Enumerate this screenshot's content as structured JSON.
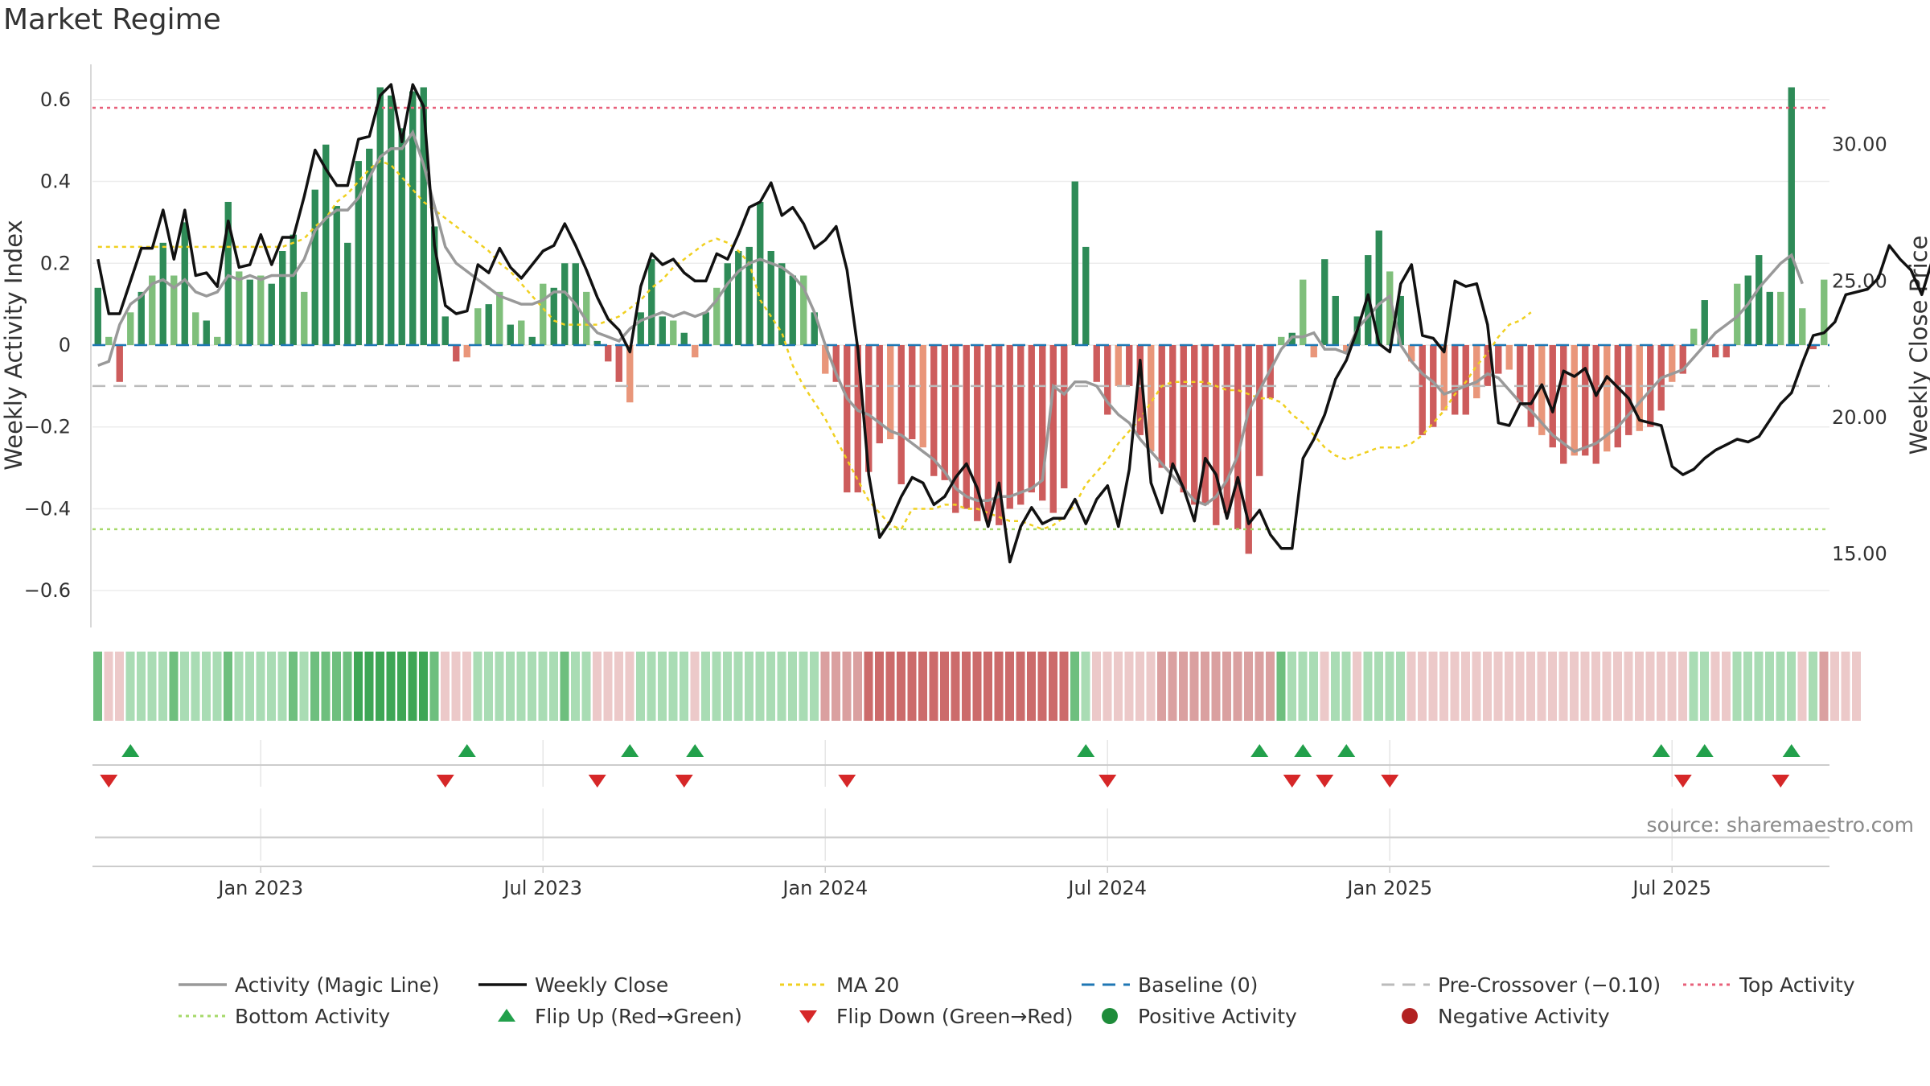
{
  "title": "Market Regime",
  "source": "source: sharemaestro.com",
  "colors": {
    "pos_dark": "#2e8b57",
    "pos_light": "#7fbf7b",
    "neg_dark": "#cd5c5c",
    "neg_light": "#e9967a",
    "close": "#111111",
    "magic": "#999999",
    "ma20": "#f0d020",
    "baseline": "#1f77b4",
    "precross": "#bbbbbb",
    "top": "#e8607a",
    "bottom": "#a6d96a",
    "flip_up": "#22a04b",
    "flip_down": "#d62728",
    "pos_dot": "#1e8c3a",
    "neg_dot": "#b22222"
  },
  "chart_data": {
    "type": "bar",
    "title": "Market Regime",
    "ylabel_left": "Weekly Activity Index",
    "ylabel_right": "Weekly Close Price",
    "ylim_left": [
      -0.69,
      0.69
    ],
    "ylim_right": [
      12.3,
      33.0
    ],
    "yticks_left": [
      {
        "v": 0.6,
        "label": "0.6"
      },
      {
        "v": 0.4,
        "label": "0.4"
      },
      {
        "v": 0.2,
        "label": "0.2"
      },
      {
        "v": 0,
        "label": "0"
      },
      {
        "v": -0.2,
        "label": "−0.2"
      },
      {
        "v": -0.4,
        "label": "−0.4"
      },
      {
        "v": -0.6,
        "label": "−0.6"
      }
    ],
    "yticks_right": [
      {
        "v": 30,
        "label": "30.00"
      },
      {
        "v": 25,
        "label": "25.00"
      },
      {
        "v": 20,
        "label": "20.00"
      },
      {
        "v": 15,
        "label": "15.00"
      }
    ],
    "xticks": [
      {
        "week": 15,
        "label": "Jan 2023"
      },
      {
        "week": 41,
        "label": "Jul 2023"
      },
      {
        "week": 67,
        "label": "Jan 2024"
      },
      {
        "week": 93,
        "label": "Jul 2024"
      },
      {
        "week": 119,
        "label": "Jan 2025"
      },
      {
        "week": 145,
        "label": "Jul 2025"
      }
    ],
    "activity": [
      0.14,
      0.02,
      -0.09,
      0.08,
      0.13,
      0.17,
      0.25,
      0.17,
      0.3,
      0.08,
      0.06,
      0.02,
      0.35,
      0.18,
      0.16,
      0.17,
      0.15,
      0.23,
      0.27,
      0.13,
      0.38,
      0.49,
      0.34,
      0.25,
      0.45,
      0.48,
      0.63,
      0.61,
      0.53,
      0.62,
      0.63,
      0.29,
      0.07,
      -0.04,
      -0.03,
      0.09,
      0.1,
      0.13,
      0.05,
      0.06,
      0.02,
      0.15,
      0.14,
      0.2,
      0.2,
      0.13,
      0.01,
      -0.04,
      -0.09,
      -0.14,
      0.08,
      0.21,
      0.07,
      0.06,
      0.03,
      -0.03,
      0.08,
      0.14,
      0.2,
      0.23,
      0.24,
      0.35,
      0.23,
      0.2,
      0.17,
      0.17,
      0.08,
      -0.07,
      -0.09,
      -0.36,
      -0.36,
      -0.31,
      -0.24,
      -0.23,
      -0.34,
      -0.23,
      -0.25,
      -0.32,
      -0.33,
      -0.41,
      -0.4,
      -0.43,
      -0.43,
      -0.44,
      -0.4,
      -0.39,
      -0.36,
      -0.38,
      -0.41,
      -0.35,
      0.4,
      0.24,
      -0.09,
      -0.17,
      -0.1,
      -0.1,
      -0.22,
      -0.26,
      -0.3,
      -0.3,
      -0.36,
      -0.39,
      -0.39,
      -0.44,
      -0.41,
      -0.45,
      -0.51,
      -0.32,
      -0.13,
      0.02,
      0.03,
      0.16,
      -0.03,
      0.21,
      0.12,
      -0.02,
      0.07,
      0.22,
      0.28,
      0.18,
      0.12,
      -0.04,
      -0.22,
      -0.2,
      -0.16,
      -0.17,
      -0.17,
      -0.13,
      -0.1,
      -0.07,
      -0.06,
      -0.14,
      -0.2,
      -0.22,
      -0.25,
      -0.29,
      -0.27,
      -0.27,
      -0.29,
      -0.26,
      -0.25,
      -0.22,
      -0.21,
      -0.2,
      -0.16,
      -0.09,
      -0.07,
      0.04,
      0.11,
      -0.03,
      -0.03,
      0.15,
      0.17,
      0.22,
      0.13,
      0.13,
      0.63,
      0.09,
      -0.01,
      0.16
    ],
    "weekly_close": [
      25.8,
      23.8,
      23.8,
      25.0,
      26.2,
      26.2,
      27.6,
      25.8,
      27.6,
      25.2,
      25.3,
      24.8,
      27.2,
      25.5,
      25.6,
      26.7,
      25.6,
      26.6,
      26.6,
      28.1,
      29.8,
      29.1,
      28.5,
      28.5,
      30.2,
      30.3,
      31.8,
      32.2,
      30.1,
      32.2,
      31.4,
      26.3,
      24.1,
      23.8,
      23.9,
      25.6,
      25.3,
      26.2,
      25.5,
      25.1,
      25.6,
      26.1,
      26.3,
      27.1,
      26.3,
      25.4,
      24.4,
      23.6,
      23.2,
      22.4,
      24.8,
      26.0,
      25.6,
      25.8,
      25.3,
      25.0,
      25.0,
      26.0,
      25.8,
      26.7,
      27.7,
      27.9,
      28.6,
      27.4,
      27.7,
      27.1,
      26.2,
      26.5,
      27.0,
      25.4,
      22.5,
      17.9,
      15.6,
      16.2,
      17.1,
      17.8,
      17.6,
      16.8,
      17.1,
      17.8,
      18.3,
      17.4,
      16.0,
      17.6,
      14.7,
      16.0,
      16.7,
      16.1,
      16.3,
      16.3,
      17.0,
      16.1,
      17.0,
      17.5,
      16.0,
      18.1,
      22.1,
      17.6,
      16.5,
      18.3,
      17.4,
      16.2,
      18.5,
      17.9,
      16.3,
      17.8,
      16.1,
      16.6,
      15.7,
      15.2,
      15.2,
      18.5,
      19.2,
      20.1,
      21.4,
      22.1,
      23.2,
      24.5,
      22.7,
      22.4,
      24.9,
      25.6,
      23.0,
      22.9,
      22.4,
      25.0,
      24.8,
      24.9,
      23.4,
      19.8,
      19.7,
      20.5,
      20.5,
      21.2,
      20.2,
      21.7,
      21.5,
      21.8,
      20.8,
      21.5,
      21.1,
      20.7,
      19.9,
      19.8,
      19.7,
      18.2,
      17.9,
      18.1,
      18.5,
      18.8,
      19.0,
      19.2,
      19.1,
      19.3,
      19.9,
      20.5,
      20.9,
      22.0,
      23.0,
      23.1,
      23.5,
      24.5,
      24.6,
      24.7,
      25.1,
      26.3,
      25.8,
      25.4,
      24.5,
      25.8
    ],
    "regime_strip": [
      2,
      1,
      1,
      1,
      1,
      1,
      1,
      2,
      1,
      1,
      1,
      1,
      2,
      1,
      1,
      1,
      1,
      1,
      2,
      1,
      2,
      2,
      2,
      2,
      3,
      3,
      3,
      3,
      3,
      3,
      3,
      2,
      1,
      1,
      1,
      1,
      1,
      1,
      1,
      1,
      1,
      1,
      1,
      2,
      1,
      1,
      1,
      1,
      1,
      1,
      1,
      1,
      1,
      1,
      1,
      1,
      1,
      1,
      1,
      1,
      1,
      1,
      1,
      1,
      1,
      1,
      1,
      2,
      2,
      2,
      2,
      3,
      3,
      3,
      3,
      3,
      3,
      3,
      3,
      3,
      3,
      3,
      3,
      3,
      3,
      3,
      3,
      3,
      3,
      3,
      2,
      1,
      1,
      1,
      1,
      1,
      1,
      1,
      2,
      2,
      2,
      2,
      2,
      2,
      2,
      2,
      2,
      2,
      2,
      2,
      1,
      1,
      1,
      1,
      1,
      1,
      1,
      1,
      1,
      1,
      1,
      1,
      1,
      1,
      1,
      1,
      1,
      1,
      1,
      1,
      1,
      1,
      1,
      1,
      1,
      1,
      1,
      1,
      1,
      1,
      1,
      1,
      1,
      1,
      1,
      1,
      1,
      1,
      1,
      1,
      1,
      1,
      1,
      1,
      1,
      1,
      1,
      1,
      1,
      2,
      1,
      1,
      1
    ],
    "regime_sign": [
      1,
      -1,
      -1,
      1,
      1,
      1,
      1,
      1,
      1,
      1,
      1,
      1,
      1,
      1,
      1,
      1,
      1,
      1,
      1,
      1,
      1,
      1,
      1,
      1,
      1,
      1,
      1,
      1,
      1,
      1,
      1,
      1,
      -1,
      -1,
      -1,
      1,
      1,
      1,
      1,
      1,
      1,
      1,
      1,
      1,
      1,
      1,
      -1,
      -1,
      -1,
      -1,
      1,
      1,
      1,
      1,
      1,
      -1,
      1,
      1,
      1,
      1,
      1,
      1,
      1,
      1,
      1,
      1,
      1,
      -1,
      -1,
      -1,
      -1,
      -1,
      -1,
      -1,
      -1,
      -1,
      -1,
      -1,
      -1,
      -1,
      -1,
      -1,
      -1,
      -1,
      -1,
      -1,
      -1,
      -1,
      -1,
      -1,
      1,
      1,
      -1,
      -1,
      -1,
      -1,
      -1,
      -1,
      -1,
      -1,
      -1,
      -1,
      -1,
      -1,
      -1,
      -1,
      -1,
      -1,
      -1,
      1,
      1,
      1,
      1,
      -1,
      1,
      1,
      -1,
      1,
      1,
      1,
      1,
      -1,
      -1,
      -1,
      -1,
      -1,
      -1,
      -1,
      -1,
      -1,
      -1,
      -1,
      -1,
      -1,
      -1,
      -1,
      -1,
      -1,
      -1,
      -1,
      -1,
      -1,
      -1,
      -1,
      -1,
      -1,
      -1,
      1,
      1,
      -1,
      -1,
      1,
      1,
      1,
      1,
      1,
      1,
      -1,
      1
    ],
    "magic_line": [
      -0.05,
      -0.04,
      0.05,
      0.1,
      0.12,
      0.15,
      0.16,
      0.14,
      0.16,
      0.13,
      0.12,
      0.13,
      0.17,
      0.16,
      0.17,
      0.16,
      0.17,
      0.17,
      0.17,
      0.21,
      0.28,
      0.31,
      0.33,
      0.33,
      0.36,
      0.41,
      0.46,
      0.48,
      0.48,
      0.52,
      0.44,
      0.34,
      0.24,
      0.2,
      0.18,
      0.16,
      0.14,
      0.12,
      0.11,
      0.1,
      0.1,
      0.11,
      0.13,
      0.13,
      0.1,
      0.06,
      0.03,
      0.02,
      0.01,
      0.04,
      0.06,
      0.07,
      0.08,
      0.07,
      0.08,
      0.07,
      0.08,
      0.11,
      0.15,
      0.18,
      0.2,
      0.21,
      0.2,
      0.19,
      0.17,
      0.14,
      0.08,
      0.0,
      -0.07,
      -0.13,
      -0.16,
      -0.17,
      -0.19,
      -0.21,
      -0.22,
      -0.24,
      -0.26,
      -0.28,
      -0.31,
      -0.35,
      -0.37,
      -0.38,
      -0.38,
      -0.37,
      -0.37,
      -0.36,
      -0.35,
      -0.33,
      -0.1,
      -0.12,
      -0.09,
      -0.09,
      -0.1,
      -0.14,
      -0.17,
      -0.19,
      -0.23,
      -0.26,
      -0.29,
      -0.32,
      -0.35,
      -0.38,
      -0.39,
      -0.37,
      -0.33,
      -0.27,
      -0.16,
      -0.11,
      -0.06,
      -0.01,
      0.02,
      0.02,
      0.03,
      -0.01,
      -0.01,
      -0.02,
      0.04,
      0.07,
      0.1,
      0.12,
      0.0,
      -0.04,
      -0.07,
      -0.09,
      -0.12,
      -0.11,
      -0.1,
      -0.09,
      -0.07,
      -0.08,
      -0.11,
      -0.14,
      -0.16,
      -0.19,
      -0.22,
      -0.24,
      -0.26,
      -0.25,
      -0.24,
      -0.22,
      -0.2,
      -0.17,
      -0.14,
      -0.11,
      -0.08,
      -0.07,
      -0.06,
      -0.03,
      0.0,
      0.03,
      0.05,
      0.07,
      0.1,
      0.14,
      0.17,
      0.2,
      0.22,
      0.15
    ],
    "ma20": [
      0.24,
      0.24,
      0.24,
      0.24,
      0.24,
      0.24,
      0.24,
      0.24,
      0.24,
      0.24,
      0.24,
      0.24,
      0.24,
      0.24,
      0.24,
      0.24,
      0.24,
      0.24,
      0.25,
      0.26,
      0.29,
      0.31,
      0.35,
      0.37,
      0.4,
      0.43,
      0.45,
      0.44,
      0.41,
      0.38,
      0.35,
      0.33,
      0.31,
      0.29,
      0.27,
      0.25,
      0.23,
      0.2,
      0.18,
      0.15,
      0.12,
      0.09,
      0.06,
      0.05,
      0.05,
      0.05,
      0.05,
      0.06,
      0.07,
      0.09,
      0.11,
      0.14,
      0.16,
      0.19,
      0.21,
      0.23,
      0.25,
      0.26,
      0.25,
      0.23,
      0.2,
      0.11,
      0.07,
      0.03,
      -0.05,
      -0.1,
      -0.14,
      -0.18,
      -0.23,
      -0.28,
      -0.33,
      -0.38,
      -0.41,
      -0.44,
      -0.45,
      -0.4,
      -0.4,
      -0.4,
      -0.39,
      -0.39,
      -0.4,
      -0.4,
      -0.41,
      -0.42,
      -0.43,
      -0.43,
      -0.44,
      -0.45,
      -0.44,
      -0.42,
      -0.39,
      -0.34,
      -0.31,
      -0.28,
      -0.24,
      -0.21,
      -0.18,
      -0.14,
      -0.1,
      -0.09,
      -0.09,
      -0.09,
      -0.09,
      -0.1,
      -0.11,
      -0.11,
      -0.12,
      -0.13,
      -0.13,
      -0.14,
      -0.17,
      -0.19,
      -0.22,
      -0.25,
      -0.27,
      -0.28,
      -0.27,
      -0.26,
      -0.25,
      -0.25,
      -0.25,
      -0.24,
      -0.22,
      -0.19,
      -0.16,
      -0.12,
      -0.09,
      -0.05,
      -0.02,
      0.02,
      0.05,
      0.06,
      0.08
    ],
    "thresholds": {
      "top": 0.58,
      "bottom": -0.45,
      "pre_crossover": -0.1,
      "baseline": 0
    },
    "flip_up_weeks": [
      3,
      34,
      49,
      55,
      91,
      107,
      111,
      115,
      144,
      148,
      156
    ],
    "flip_down_weeks": [
      1,
      32,
      46,
      54,
      69,
      93,
      110,
      113,
      119,
      146,
      155
    ],
    "legend": [
      {
        "label": "Activity (Magic Line)",
        "kind": "line-gray"
      },
      {
        "label": "Weekly Close",
        "kind": "line-black"
      },
      {
        "label": "MA 20",
        "kind": "dot-yellow"
      },
      {
        "label": "Baseline (0)",
        "kind": "dash-blue"
      },
      {
        "label": "Pre-Crossover (−0.10)",
        "kind": "dash-gray"
      },
      {
        "label": "Top Activity",
        "kind": "dot-pink"
      },
      {
        "label": "Bottom Activity",
        "kind": "dot-green"
      },
      {
        "label": "Flip Up (Red→Green)",
        "kind": "tri-up"
      },
      {
        "label": "Flip Down (Green→Red)",
        "kind": "tri-down"
      },
      {
        "label": "Positive Activity",
        "kind": "circle-green"
      },
      {
        "label": "Negative Activity",
        "kind": "circle-red"
      }
    ]
  }
}
